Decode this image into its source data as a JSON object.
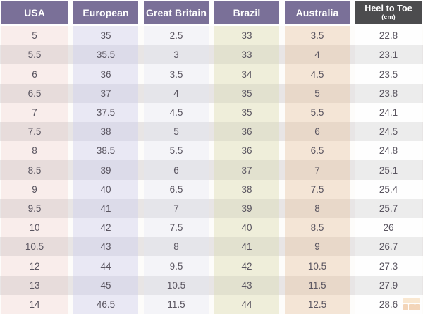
{
  "chart_data": {
    "type": "table",
    "columns": [
      {
        "label": "USA"
      },
      {
        "label": "European"
      },
      {
        "label": "Great Britain"
      },
      {
        "label": "Brazil"
      },
      {
        "label": "Australia"
      },
      {
        "label": "Heel to Toe",
        "sub": "(cm)"
      }
    ],
    "rows": [
      [
        "5",
        "35",
        "2.5",
        "33",
        "3.5",
        "22.8"
      ],
      [
        "5.5",
        "35.5",
        "3",
        "33",
        "4",
        "23.1"
      ],
      [
        "6",
        "36",
        "3.5",
        "34",
        "4.5",
        "23.5"
      ],
      [
        "6.5",
        "37",
        "4",
        "35",
        "5",
        "23.8"
      ],
      [
        "7",
        "37.5",
        "4.5",
        "35",
        "5.5",
        "24.1"
      ],
      [
        "7.5",
        "38",
        "5",
        "36",
        "6",
        "24.5"
      ],
      [
        "8",
        "38.5",
        "5.5",
        "36",
        "6.5",
        "24.8"
      ],
      [
        "8.5",
        "39",
        "6",
        "37",
        "7",
        "25.1"
      ],
      [
        "9",
        "40",
        "6.5",
        "38",
        "7.5",
        "25.4"
      ],
      [
        "9.5",
        "41",
        "7",
        "39",
        "8",
        "25.7"
      ],
      [
        "10",
        "42",
        "7.5",
        "40",
        "8.5",
        "26"
      ],
      [
        "10.5",
        "43",
        "8",
        "41",
        "9",
        "26.7"
      ],
      [
        "12",
        "44",
        "9.5",
        "42",
        "10.5",
        "27.3"
      ],
      [
        "13",
        "45",
        "10.5",
        "43",
        "11.5",
        "27.9"
      ],
      [
        "14",
        "46.5",
        "11.5",
        "44",
        "12.5",
        "28.6"
      ]
    ],
    "legend_position": "none",
    "grid": "column-tinted rows with alternating shading"
  },
  "colors": {
    "header_bg": "#7a7098",
    "header_text": "#ffffff",
    "heel_header_bg": "#4c4c4e",
    "cell_text": "#5a5560",
    "row_odd_base": "#fdfcfa",
    "row_even_base": "#e8e5e5",
    "columns_odd": [
      "#f9edeb",
      "#e9e8f4",
      "#f4f4f8",
      "#efeeda",
      "#f4e5d6",
      "#fefefe"
    ],
    "columns_even": [
      "#e7dcdb",
      "#dcdbe9",
      "#e5e5ea",
      "#e2e1cf",
      "#e8d8c9",
      "#ececec"
    ],
    "watermark_light": "#f2bd7d",
    "watermark_dark": "#e08a3a"
  },
  "watermark": {
    "icon": "grid-logo"
  }
}
